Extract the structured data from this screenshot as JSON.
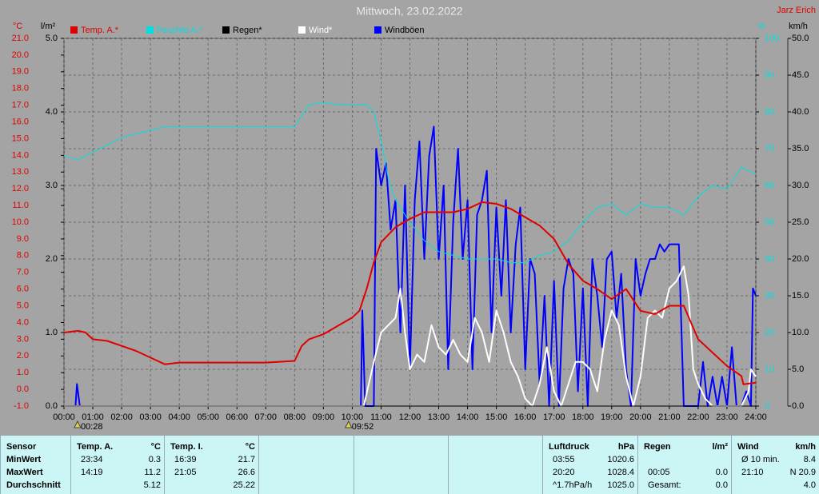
{
  "chart_data": {
    "type": "line",
    "title": "Mittwoch, 23.02.2022",
    "credit": "Jarz Erich",
    "grid": true,
    "xlim": [
      0,
      24
    ],
    "xticks": [
      {
        "value": 0,
        "label": "00:00"
      },
      {
        "value": 1,
        "label": "01:00"
      },
      {
        "value": 2,
        "label": "02:00"
      },
      {
        "value": 3,
        "label": "03:00"
      },
      {
        "value": 4,
        "label": "04:00"
      },
      {
        "value": 5,
        "label": "05:00"
      },
      {
        "value": 6,
        "label": "06:00"
      },
      {
        "value": 7,
        "label": "07:00"
      },
      {
        "value": 8,
        "label": "08:00"
      },
      {
        "value": 9,
        "label": "09:00"
      },
      {
        "value": 10,
        "label": "10:00"
      },
      {
        "value": 11,
        "label": "11:00"
      },
      {
        "value": 12,
        "label": "12:00"
      },
      {
        "value": 13,
        "label": "13:00"
      },
      {
        "value": 14,
        "label": "14:00"
      },
      {
        "value": 15,
        "label": "15:00"
      },
      {
        "value": 16,
        "label": "16:00"
      },
      {
        "value": 17,
        "label": "17:00"
      },
      {
        "value": 18,
        "label": "18:00"
      },
      {
        "value": 19,
        "label": "19:00"
      },
      {
        "value": 20,
        "label": "20:00"
      },
      {
        "value": 21,
        "label": "21:00"
      },
      {
        "value": 22,
        "label": "22:00"
      },
      {
        "value": 23,
        "label": "23:00"
      },
      {
        "value": 24,
        "label": "24:00"
      }
    ],
    "axes": {
      "y": {
        "unit": "°C",
        "color": "#e00000",
        "lim": [
          -1,
          21
        ],
        "ticks": [
          {
            "value": -1,
            "label": "-1.0"
          },
          {
            "value": 0,
            "label": "0.0"
          },
          {
            "value": 1,
            "label": "1.0"
          },
          {
            "value": 2,
            "label": "2.0"
          },
          {
            "value": 3,
            "label": "3.0"
          },
          {
            "value": 4,
            "label": "4.0"
          },
          {
            "value": 5,
            "label": "5.0"
          },
          {
            "value": 6,
            "label": "6.0"
          },
          {
            "value": 7,
            "label": "7.0"
          },
          {
            "value": 8,
            "label": "8.0"
          },
          {
            "value": 9,
            "label": "9.0"
          },
          {
            "value": 10,
            "label": "10.0"
          },
          {
            "value": 11,
            "label": "11.0"
          },
          {
            "value": 12,
            "label": "12.0"
          },
          {
            "value": 13,
            "label": "13.0"
          },
          {
            "value": 14,
            "label": "14.0"
          },
          {
            "value": 15,
            "label": "15.0"
          },
          {
            "value": 16,
            "label": "16.0"
          },
          {
            "value": 17,
            "label": "17.0"
          },
          {
            "value": 18,
            "label": "18.0"
          },
          {
            "value": 19,
            "label": "19.0"
          },
          {
            "value": 20,
            "label": "20.0"
          },
          {
            "value": 21,
            "label": "21.0"
          }
        ]
      },
      "y2": {
        "unit": "l/m²",
        "color": "#000000",
        "lim": [
          0,
          5
        ],
        "ticks": [
          {
            "value": 0,
            "label": "0.0"
          },
          {
            "value": 1,
            "label": "1.0"
          },
          {
            "value": 2,
            "label": "2.0"
          },
          {
            "value": 3,
            "label": "3.0"
          },
          {
            "value": 4,
            "label": "4.0"
          },
          {
            "value": 5,
            "label": "5.0"
          }
        ]
      },
      "y3": {
        "unit": "%",
        "color": "#00e0e0",
        "lim": [
          0,
          100
        ],
        "ticks": [
          0,
          10,
          20,
          30,
          40,
          50,
          60,
          70,
          80,
          90,
          100
        ]
      },
      "y4": {
        "unit": "km/h",
        "color": "#000000",
        "lim": [
          0,
          50
        ],
        "ticks": [
          {
            "value": 0,
            "label": "0.0"
          },
          {
            "value": 5,
            "label": "5.0"
          },
          {
            "value": 10,
            "label": "10.0"
          },
          {
            "value": 15,
            "label": "15.0"
          },
          {
            "value": 20,
            "label": "20.0"
          },
          {
            "value": 25,
            "label": "25.0"
          },
          {
            "value": 30,
            "label": "30.0"
          },
          {
            "value": 35,
            "label": "35.0"
          },
          {
            "value": 40,
            "label": "40.0"
          },
          {
            "value": 45,
            "label": "45.0"
          },
          {
            "value": 50,
            "label": "50.0"
          }
        ]
      }
    },
    "series": [
      {
        "name": "Temp. A.*",
        "color": "#e00000",
        "axis": "y",
        "x": [
          0,
          0.5,
          0.75,
          1,
          1.5,
          2,
          2.5,
          3,
          3.5,
          4,
          5,
          6,
          7,
          8,
          8.25,
          8.5,
          9,
          9.5,
          10,
          10.25,
          10.5,
          10.75,
          11,
          11.5,
          12,
          12.5,
          13,
          13.5,
          14,
          14.5,
          15,
          15.5,
          16,
          16.5,
          17,
          17.5,
          18,
          18.5,
          19,
          19.5,
          20,
          20.5,
          21,
          21.5,
          22,
          22.5,
          23,
          23.5,
          23.57,
          24
        ],
        "values": [
          3.4,
          3.5,
          3.4,
          3.0,
          2.9,
          2.6,
          2.3,
          1.9,
          1.5,
          1.6,
          1.6,
          1.6,
          1.6,
          1.7,
          2.6,
          3.0,
          3.3,
          3.8,
          4.3,
          4.7,
          6.0,
          7.6,
          8.8,
          9.7,
          10.2,
          10.6,
          10.6,
          10.6,
          10.8,
          11.2,
          11.1,
          10.8,
          10.3,
          9.8,
          9.0,
          7.5,
          6.5,
          6.0,
          5.4,
          6.0,
          4.7,
          4.5,
          5.0,
          5.0,
          3.0,
          2.2,
          1.4,
          0.8,
          0.3,
          0.4
        ]
      },
      {
        "name": "Feuchte A.*",
        "color": "#00e0e0",
        "axis": "y3",
        "x": [
          0,
          0.5,
          1,
          1.5,
          2,
          2.5,
          3,
          3.5,
          4,
          5,
          6,
          7,
          8,
          8.25,
          8.5,
          9,
          9.5,
          10,
          10.5,
          10.75,
          11,
          11.25,
          11.5,
          12,
          12.5,
          13,
          13.5,
          14,
          14.5,
          15,
          15.5,
          16,
          16.5,
          17,
          17.5,
          18,
          18.5,
          19,
          19.5,
          20,
          20.5,
          21,
          21.5,
          22,
          22.5,
          23,
          23.5,
          24
        ],
        "values": [
          68,
          67,
          69,
          71,
          73,
          74,
          75,
          76,
          76,
          76,
          76,
          76,
          76,
          79,
          82,
          82.5,
          82,
          82,
          82,
          80,
          72,
          62,
          56,
          50,
          45,
          42,
          41,
          40,
          40,
          40,
          39,
          39,
          41,
          42,
          45,
          50,
          54,
          55,
          52,
          55,
          54,
          54,
          52,
          57,
          60,
          59,
          65,
          63
        ]
      },
      {
        "name": "Regen*",
        "color": "#000000",
        "axis": "y2",
        "x": [
          0,
          24
        ],
        "values": [
          0,
          0
        ]
      },
      {
        "name": "Wind*",
        "color": "#ffffff",
        "axis": "y4",
        "x": [
          0,
          10.4,
          10.75,
          11,
          11.25,
          11.5,
          11.67,
          11.83,
          12,
          12.25,
          12.5,
          12.75,
          13,
          13.25,
          13.5,
          13.75,
          14,
          14.25,
          14.5,
          14.75,
          15,
          15.25,
          15.5,
          15.75,
          16,
          16.25,
          16.5,
          16.75,
          17,
          17.25,
          17.5,
          17.75,
          18,
          18.25,
          18.5,
          18.75,
          19,
          19.25,
          19.5,
          19.75,
          20,
          20.25,
          20.5,
          20.75,
          21,
          21.25,
          21.5,
          21.67,
          21.83,
          22,
          22.25,
          22.5,
          23,
          23.5,
          23.75,
          23.83,
          24
        ],
        "values": [
          0,
          0,
          6,
          10,
          11,
          12,
          16,
          10,
          5,
          7,
          6,
          11,
          8,
          7,
          9,
          7,
          6,
          12,
          10,
          6,
          13,
          10,
          6,
          4,
          1,
          0,
          3,
          8,
          2,
          0,
          3,
          6,
          6,
          5,
          2,
          9,
          13,
          11,
          4,
          0,
          4,
          12,
          13,
          12,
          16,
          17,
          19,
          15,
          5,
          3,
          1,
          0,
          0,
          0,
          2,
          5,
          4
        ]
      },
      {
        "name": "Windböen",
        "color": "#0000ff",
        "axis": "y4",
        "x": [
          0,
          0.4,
          0.45,
          0.55,
          10.3,
          10.35,
          10.45,
          10.75,
          10.83,
          11,
          11.17,
          11.33,
          11.5,
          11.67,
          11.83,
          12,
          12.17,
          12.33,
          12.5,
          12.67,
          12.83,
          13,
          13.17,
          13.33,
          13.5,
          13.67,
          13.83,
          14,
          14.17,
          14.33,
          14.5,
          14.67,
          14.83,
          15,
          15.17,
          15.33,
          15.5,
          15.67,
          15.83,
          16,
          16.17,
          16.33,
          16.5,
          16.67,
          16.83,
          17,
          17.17,
          17.33,
          17.5,
          17.67,
          17.83,
          18,
          18.17,
          18.33,
          18.5,
          18.67,
          18.83,
          19,
          19.17,
          19.33,
          19.5,
          19.67,
          19.83,
          20,
          20.17,
          20.33,
          20.5,
          20.67,
          20.83,
          21,
          21.17,
          21.33,
          21.5,
          21.67,
          22,
          22.17,
          22.33,
          22.5,
          22.67,
          22.83,
          23,
          23.17,
          23.33,
          23.5,
          23.67,
          23.83,
          23.9,
          24
        ],
        "values": [
          0,
          0,
          3,
          0,
          0,
          13,
          0,
          0,
          35,
          30,
          33,
          24,
          28,
          10,
          30,
          5,
          28,
          36,
          20,
          34,
          38,
          20,
          30,
          5,
          25,
          35,
          20,
          28,
          5,
          26,
          28,
          32,
          10,
          27,
          15,
          28,
          10,
          22,
          27,
          5,
          20,
          18,
          3,
          15,
          0,
          17,
          0,
          16,
          20,
          18,
          2,
          16,
          0,
          20,
          15,
          8,
          20,
          21,
          12,
          18,
          5,
          0,
          20,
          15,
          18,
          20,
          20,
          22,
          21,
          22,
          22,
          22,
          0,
          0,
          0,
          6,
          0,
          4,
          0,
          4,
          0,
          8,
          0,
          0,
          2,
          0,
          16,
          15
        ]
      }
    ],
    "annotations": [
      {
        "x": 0.47,
        "label": "00:28"
      },
      {
        "x": 9.87,
        "label": "09:52"
      }
    ]
  },
  "table": {
    "row_headers": [
      "Sensor",
      "MinWert",
      "MaxWert",
      "Durchschnitt"
    ],
    "columns": [
      {
        "title": "Temp. A.",
        "unit": "°C",
        "rows": [
          {
            "time": "23:34",
            "value": "0.3"
          },
          {
            "time": "14:19",
            "value": "11.2"
          },
          {
            "value": "5.12"
          }
        ]
      },
      {
        "title": "Temp. I.",
        "unit": "°C",
        "rows": [
          {
            "time": "16:39",
            "value": "21.7"
          },
          {
            "time": "21:05",
            "value": "26.6"
          },
          {
            "value": "25.22"
          }
        ]
      },
      {
        "title": "Luftdruck",
        "unit": "hPa",
        "rows": [
          {
            "time": "03:55",
            "value": "1020.6"
          },
          {
            "time": "20:20",
            "value": "1028.4"
          },
          {
            "time": "^1.7hPa/h",
            "value": "1025.0"
          }
        ]
      },
      {
        "title": "Regen",
        "unit": "l/m²",
        "rows": [
          null,
          {
            "time": "00:05",
            "value": "0.0"
          },
          {
            "time": "Gesamt:",
            "value": "0.0"
          }
        ]
      },
      {
        "title": "Wind",
        "unit": "km/h",
        "rows": [
          {
            "time": "Ø 10 min.",
            "value": "8.4"
          },
          {
            "time": "21:10",
            "value": "N 20.9"
          },
          {
            "value": "4.0"
          }
        ]
      }
    ]
  }
}
